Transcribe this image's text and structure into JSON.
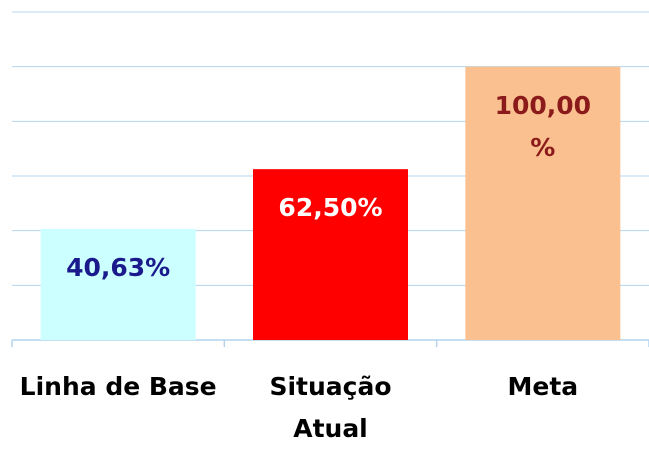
{
  "chart_data": {
    "type": "bar",
    "categories": [
      "Linha de Base",
      "Situação Atual",
      "Meta"
    ],
    "values": [
      40.63,
      62.5,
      100
    ],
    "value_labels": [
      "40,63%",
      "62,50%",
      "100,00%"
    ],
    "colors": [
      "#ccffff",
      "#ff0000",
      "#fac090"
    ],
    "label_colors": [
      "#1a1a8c",
      "#ffffff",
      "#8b1a1a"
    ],
    "ylim": [
      0,
      120
    ],
    "yticks": [
      0,
      20,
      40,
      60,
      80,
      100,
      120
    ],
    "grid": true
  }
}
